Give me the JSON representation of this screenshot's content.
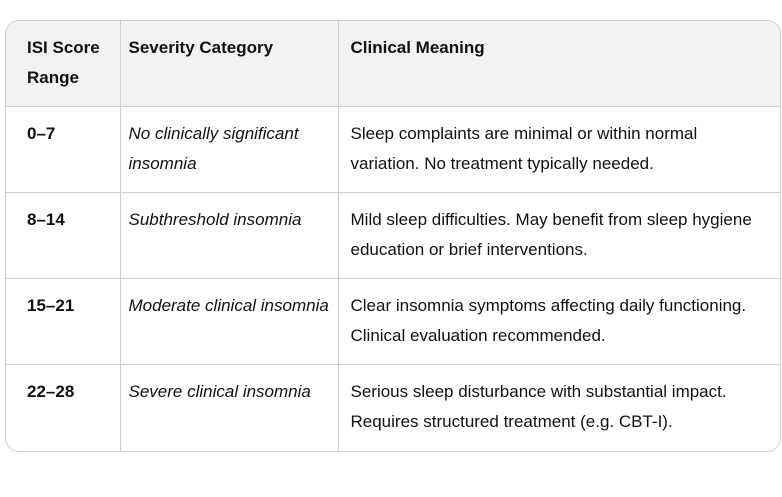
{
  "table": {
    "headers": [
      "ISI Score Range",
      "Severity Category",
      "Clinical Meaning"
    ],
    "rows": [
      {
        "range": "0–7",
        "category": "No clinically significant insomnia",
        "meaning": "Sleep complaints are minimal or within normal variation. No treatment typically needed."
      },
      {
        "range": "8–14",
        "category": "Subthreshold insomnia",
        "meaning": "Mild sleep difficulties. May benefit from sleep hygiene education or brief interventions."
      },
      {
        "range": "15–21",
        "category": "Moderate clinical insomnia",
        "meaning": "Clear insomnia symptoms affecting daily functioning. Clinical evaluation recommended."
      },
      {
        "range": "22–28",
        "category": "Severe clinical insomnia",
        "meaning": "Serious sleep disturbance with substantial impact. Requires structured treatment (e.g. CBT-I)."
      }
    ]
  }
}
